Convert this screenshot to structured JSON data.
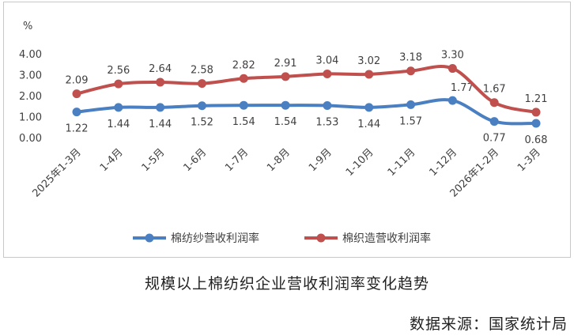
{
  "chart_data": {
    "type": "line",
    "ylabel": "%",
    "ylim": [
      0,
      4
    ],
    "yticks": [
      "0.00",
      "1.00",
      "2.00",
      "3.00",
      "4.00"
    ],
    "grid": false,
    "legend": "bottom",
    "categories": [
      "2025年1-3月",
      "1-4月",
      "1-5月",
      "1-6月",
      "1-7月",
      "1-8月",
      "1-9月",
      "1-10月",
      "1-11月",
      "1-12月",
      "2026年1-2月",
      "1-3月"
    ],
    "series": [
      {
        "name": "棉纺纱营收利润率",
        "color": "#4a7fc1",
        "values": [
          1.22,
          1.44,
          1.44,
          1.52,
          1.54,
          1.54,
          1.53,
          1.44,
          1.57,
          1.77,
          0.77,
          0.68
        ],
        "labels": [
          "1.22",
          "1.44",
          "1.44",
          "1.52",
          "1.54",
          "1.54",
          "1.53",
          "1.44",
          "1.57",
          "1.77",
          "0.77",
          "0.68"
        ]
      },
      {
        "name": "棉织造营收利润率",
        "color": "#c0504d",
        "values": [
          2.09,
          2.56,
          2.64,
          2.58,
          2.82,
          2.91,
          3.04,
          3.02,
          3.18,
          3.3,
          1.67,
          1.21
        ],
        "labels": [
          "2.09",
          "2.56",
          "2.64",
          "2.58",
          "2.82",
          "2.91",
          "3.04",
          "3.02",
          "3.18",
          "3.30",
          "1.67",
          "1.21"
        ]
      }
    ]
  },
  "caption": "规模以上棉纺织企业营收利润率变化趋势",
  "source": "数据来源：国家统计局"
}
